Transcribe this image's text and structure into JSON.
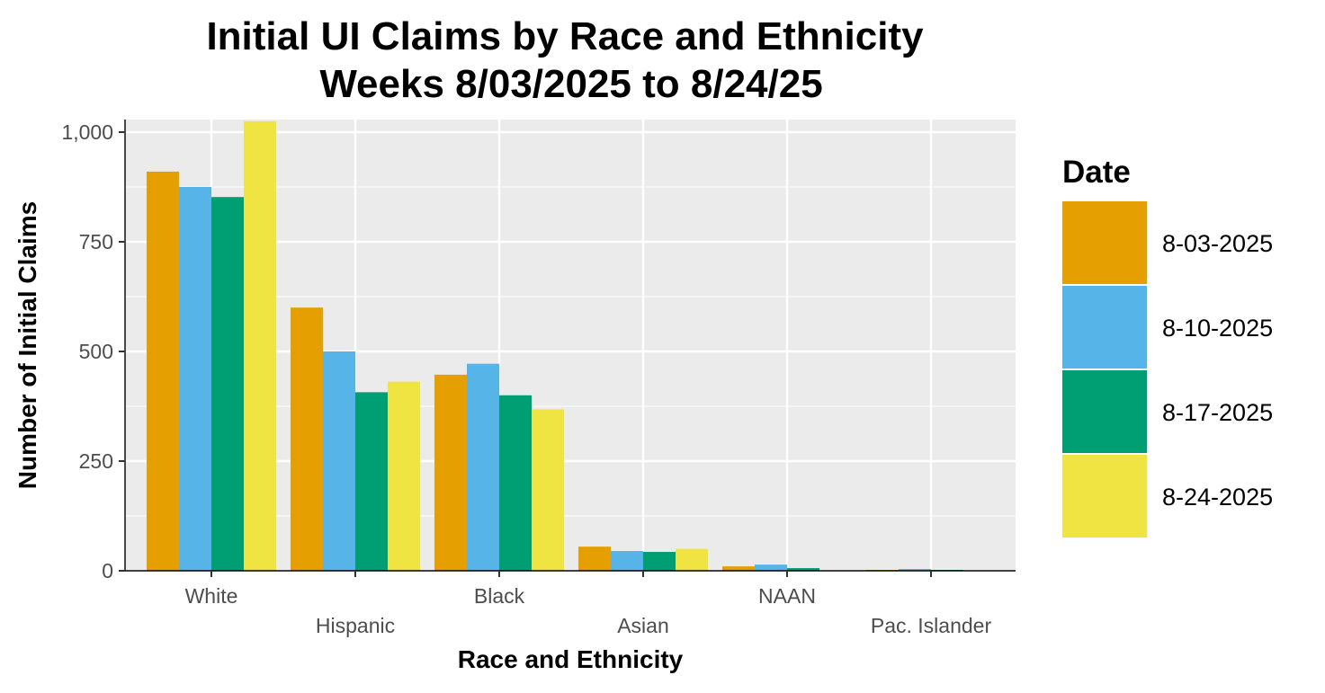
{
  "chart_data": {
    "type": "bar",
    "title": "Initial UI Claims by Race and Ethnicity",
    "subtitle": "Weeks  8/03/2025 to 8/24/25",
    "xlabel": "Race and Ethnicity",
    "ylabel": "Number of Initial Claims",
    "ylim": [
      0,
      1025
    ],
    "yticks": [
      0,
      250,
      500,
      750,
      1000
    ],
    "ytick_labels": [
      "0",
      "250",
      "500",
      "750",
      "1,000"
    ],
    "grid": true,
    "legend_title": "Date",
    "legend_position": "right",
    "categories": [
      "White",
      "Hispanic",
      "Black",
      "Asian",
      "NAAN",
      "Pac. Islander"
    ],
    "series": [
      {
        "name": "8-03-2025",
        "color": "#E69F00",
        "values": [
          910,
          600,
          447,
          55,
          10,
          2
        ]
      },
      {
        "name": "8-10-2025",
        "color": "#56B4E9",
        "values": [
          875,
          500,
          472,
          45,
          14,
          4
        ]
      },
      {
        "name": "8-17-2025",
        "color": "#009E73",
        "values": [
          852,
          407,
          400,
          43,
          6,
          2
        ]
      },
      {
        "name": "8-24-2025",
        "color": "#F0E442",
        "values": [
          1025,
          431,
          368,
          50,
          1,
          1
        ]
      }
    ]
  }
}
